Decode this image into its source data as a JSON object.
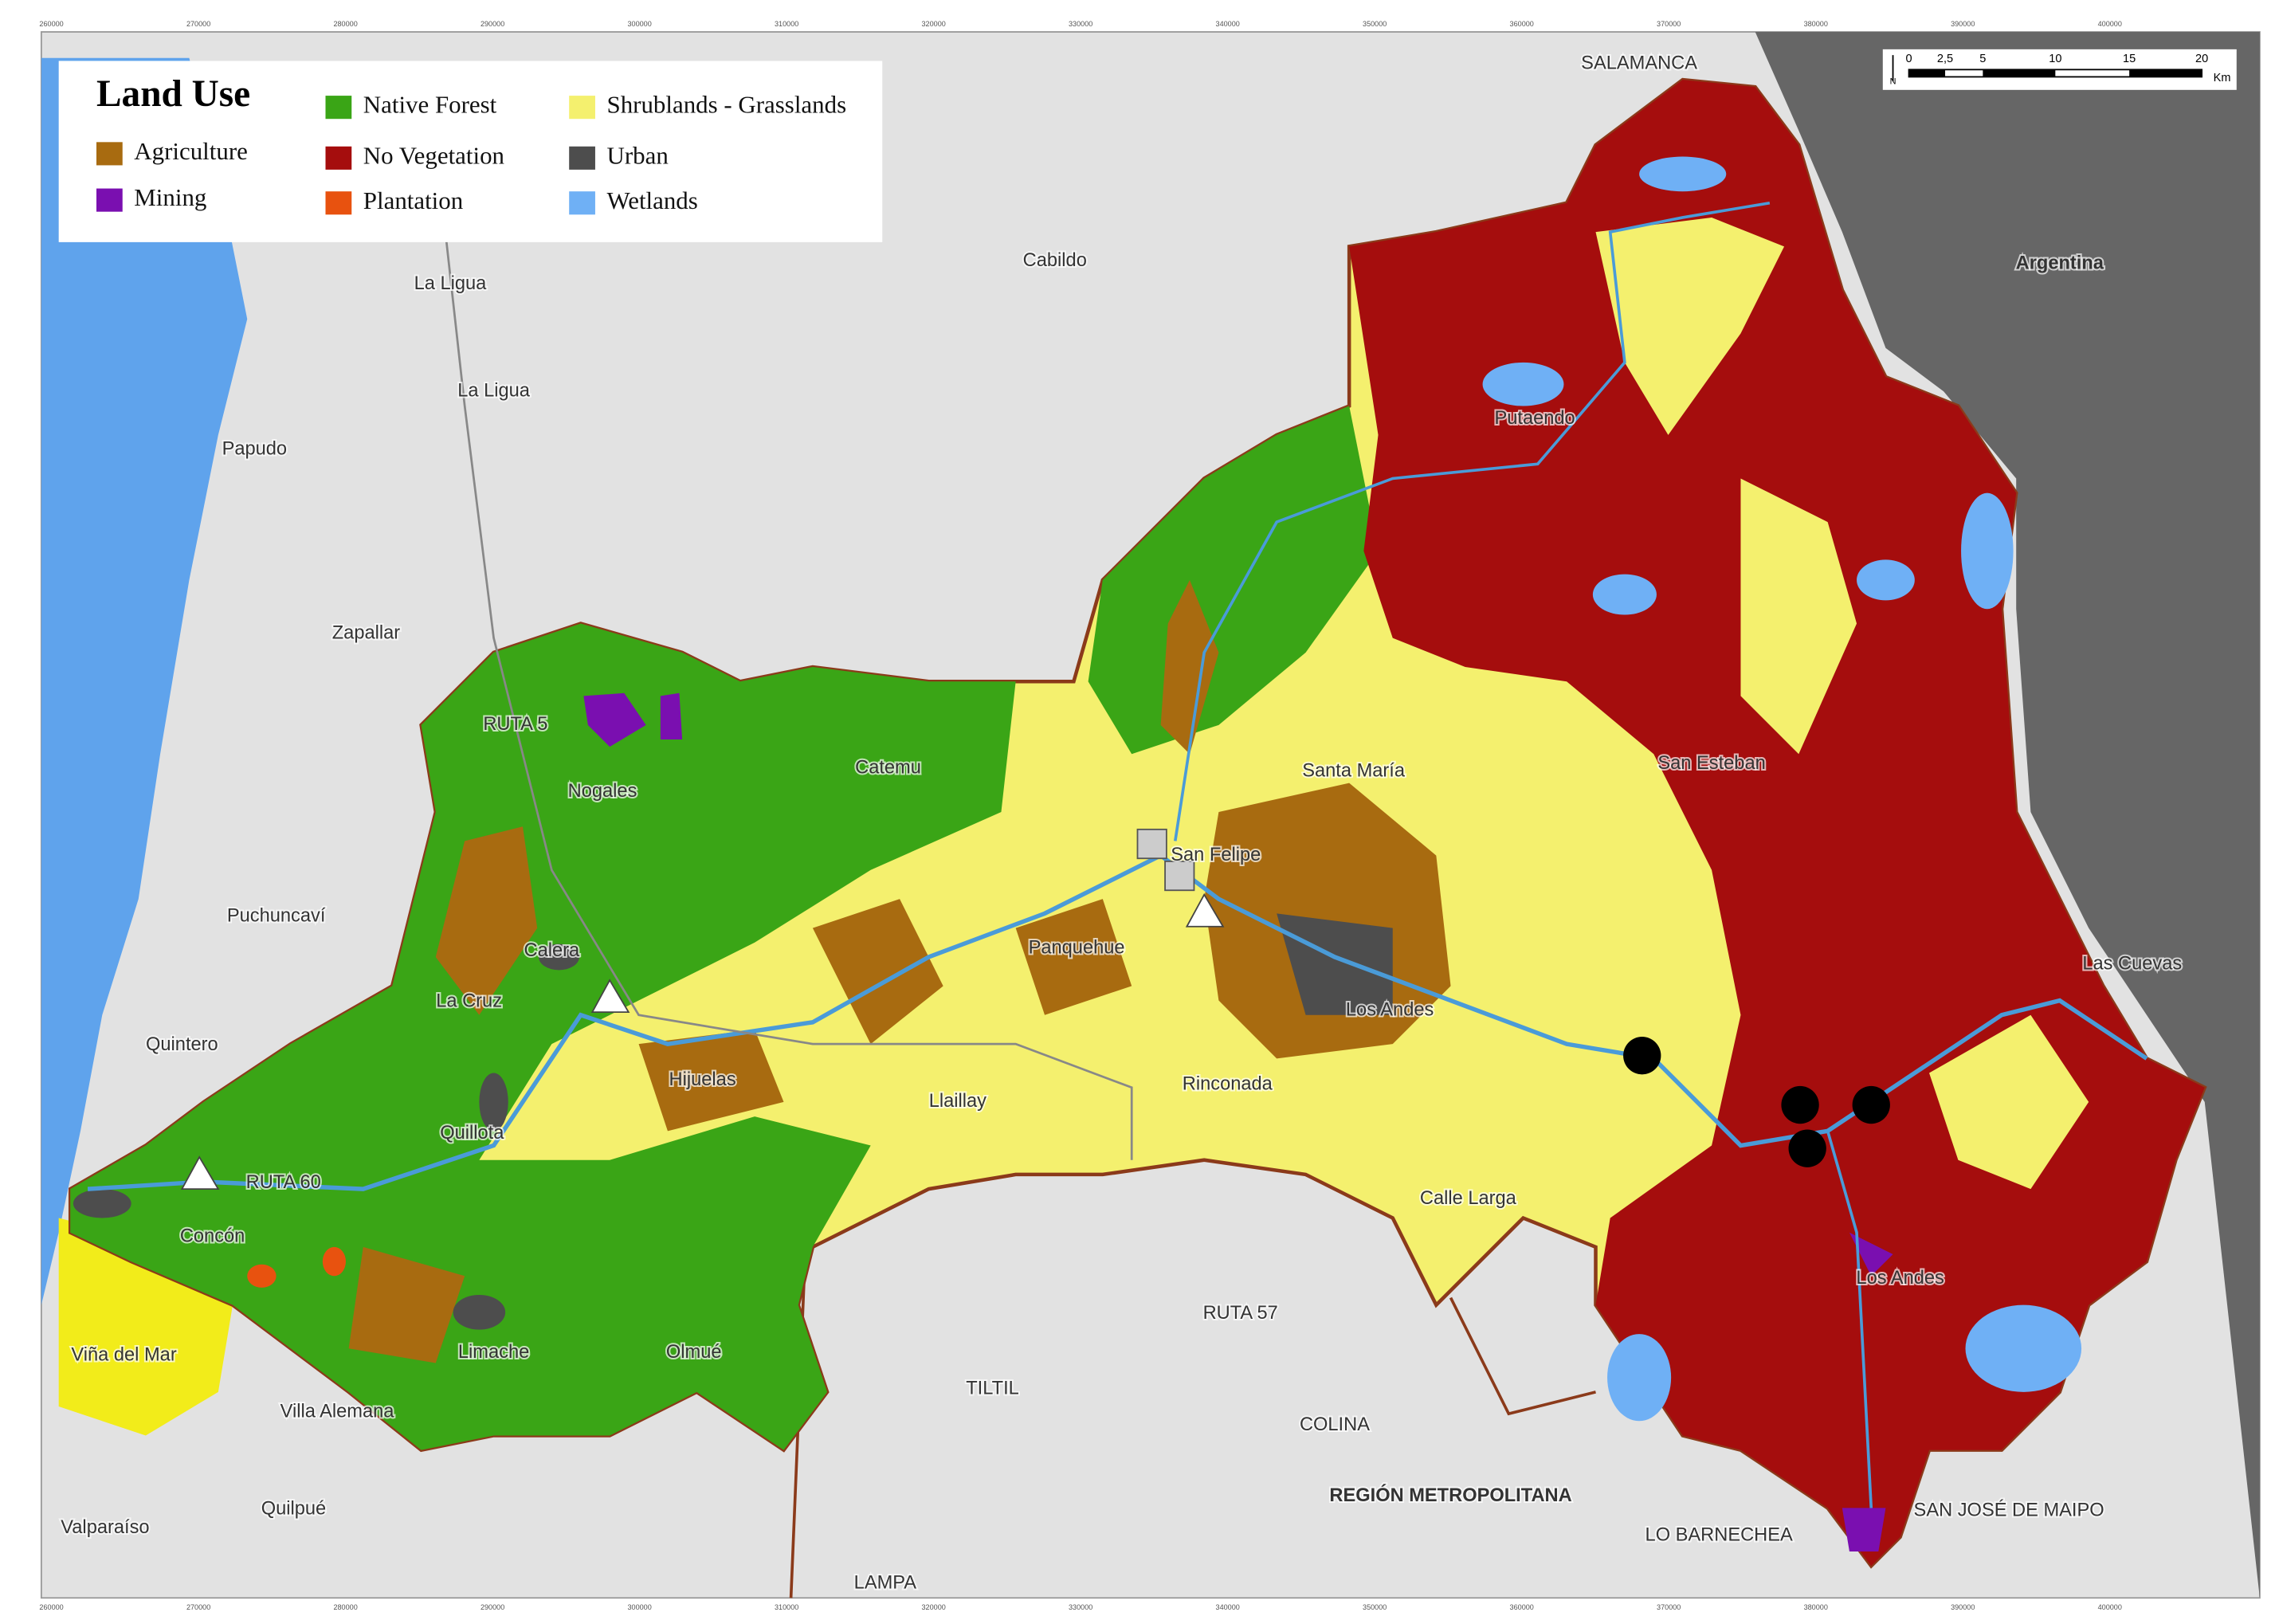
{
  "legend": {
    "title": "Land Use",
    "items": [
      {
        "label": "Agriculture",
        "color": "#a86b10"
      },
      {
        "label": "Mining",
        "color": "#7a0fb0"
      },
      {
        "label": "Native Forest",
        "color": "#3aa516"
      },
      {
        "label": "No Vegetation",
        "color": "#a50d0d"
      },
      {
        "label": "Plantation",
        "color": "#e8520f"
      },
      {
        "label": "Shrublands - Grasslands",
        "color": "#f4f06e"
      },
      {
        "label": "Urban",
        "color": "#4d4d4d"
      },
      {
        "label": "Wetlands",
        "color": "#6fb0f5"
      }
    ]
  },
  "scale_bar": {
    "ticks": [
      "0",
      "2,5",
      "5",
      "10",
      "15",
      "20"
    ],
    "unit": "Km",
    "north": "N"
  },
  "grid_labels": [
    "260000",
    "270000",
    "280000",
    "290000",
    "300000",
    "310000",
    "320000",
    "330000",
    "340000",
    "350000",
    "360000",
    "370000",
    "380000",
    "390000",
    "400000"
  ],
  "places": [
    "SALAMANCA",
    "Argentina",
    "La Ligua",
    "Cabildo",
    "La Ligua",
    "Papudo",
    "Putaendo",
    "Zapallar",
    "RUTA 5",
    "Nogales",
    "Catemu",
    "Santa María",
    "San Esteban",
    "San Felipe",
    "Puchuncaví",
    "Calera",
    "Panquehue",
    "La Cruz",
    "Quintero",
    "Hijuelas",
    "Llaillay",
    "Rinconada",
    "Los Andes",
    "Quillota",
    "RUTA 60",
    "Concón",
    "Calle Larga",
    "Los Andes",
    "RUTA 57",
    "Viña del Mar",
    "Limache",
    "Olmué",
    "Villa Alemana",
    "TILTIL",
    "COLINA",
    "REGIÓN METROPOLITANA",
    "Valparaíso",
    "Quilpué",
    "LO BARNECHEA",
    "SAN JOSÉ DE MAIPO",
    "LAMPA",
    "Las Cuevas"
  ]
}
